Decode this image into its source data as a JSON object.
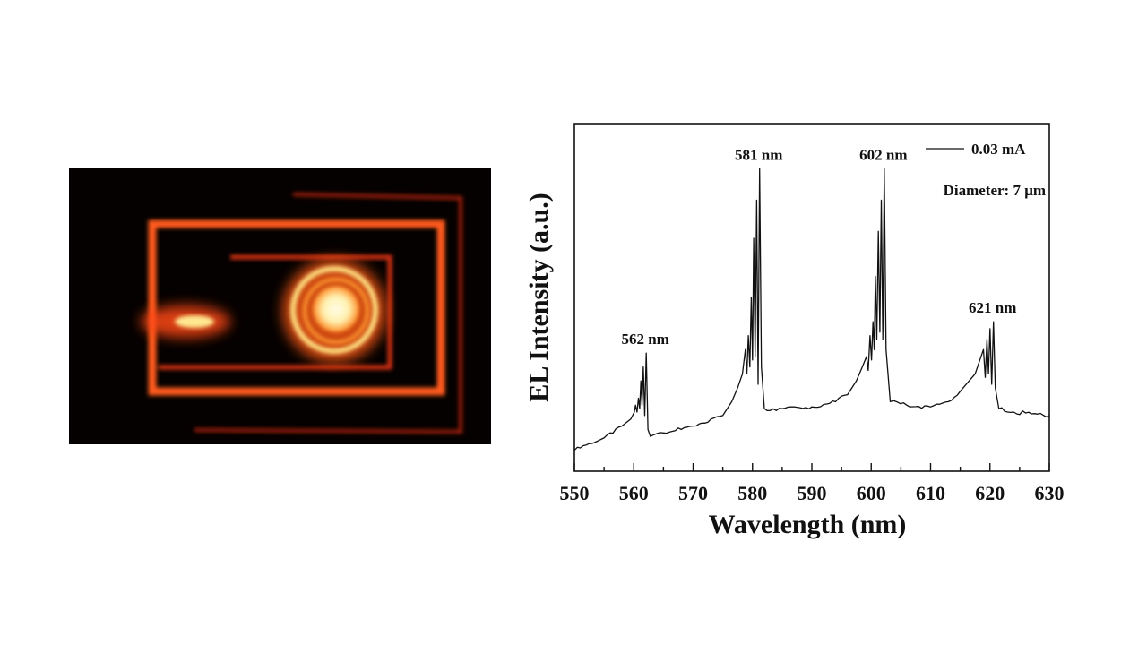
{
  "photo": {
    "caption": ""
  },
  "chart_data": {
    "type": "line",
    "title": "",
    "xlabel": "Wavelength (nm)",
    "ylabel": "EL Intensity (a.u.)",
    "xlim": [
      550,
      630
    ],
    "ylim": [
      0,
      1
    ],
    "xticks": [
      550,
      560,
      570,
      580,
      590,
      600,
      610,
      620,
      630
    ],
    "xminor_step": 5,
    "grid": false,
    "legend": {
      "placement": "top-right",
      "entries": [
        "0.03 mA"
      ]
    },
    "annotations": [
      {
        "text": "562 nm",
        "x": 562.1,
        "y": 0.34
      },
      {
        "text": "581 nm",
        "x": 581.2,
        "y": 0.87
      },
      {
        "text": "602 nm",
        "x": 602.2,
        "y": 0.87
      },
      {
        "text": "621 nm",
        "x": 620.6,
        "y": 0.43
      }
    ],
    "note": "Diameter: 7 μm",
    "series": [
      {
        "name": "0.03 mA",
        "color": "#111111",
        "x": [
          550,
          553,
          556,
          558,
          559.5,
          560.1,
          560.3,
          560.55,
          560.8,
          561.0,
          561.2,
          561.4,
          561.6,
          561.85,
          562.1,
          562.4,
          562.8,
          565,
          568,
          570,
          573,
          575,
          576.5,
          577.5,
          578.3,
          578.8,
          579.05,
          579.3,
          579.55,
          579.8,
          580.0,
          580.2,
          580.45,
          580.7,
          580.95,
          581.2,
          581.5,
          582,
          585,
          590,
          594,
          596,
          597.5,
          598.5,
          599.2,
          599.5,
          599.8,
          600.05,
          600.3,
          600.5,
          600.7,
          600.95,
          601.2,
          601.45,
          601.7,
          601.95,
          602.2,
          602.5,
          603.2,
          606,
          610,
          613,
          615,
          616.5,
          617.5,
          618.3,
          618.9,
          619.2,
          619.5,
          619.75,
          620.0,
          620.3,
          620.6,
          620.9,
          621.5,
          624,
          627,
          630
        ],
        "y": [
          0.06,
          0.08,
          0.11,
          0.13,
          0.15,
          0.17,
          0.19,
          0.17,
          0.21,
          0.18,
          0.26,
          0.19,
          0.3,
          0.16,
          0.34,
          0.12,
          0.1,
          0.11,
          0.12,
          0.13,
          0.15,
          0.16,
          0.2,
          0.24,
          0.28,
          0.35,
          0.28,
          0.39,
          0.3,
          0.5,
          0.32,
          0.67,
          0.33,
          0.78,
          0.25,
          0.87,
          0.3,
          0.18,
          0.18,
          0.185,
          0.2,
          0.22,
          0.26,
          0.3,
          0.33,
          0.29,
          0.39,
          0.32,
          0.43,
          0.35,
          0.56,
          0.38,
          0.69,
          0.4,
          0.78,
          0.38,
          0.87,
          0.35,
          0.2,
          0.19,
          0.185,
          0.2,
          0.23,
          0.26,
          0.28,
          0.32,
          0.35,
          0.27,
          0.38,
          0.28,
          0.41,
          0.25,
          0.43,
          0.24,
          0.18,
          0.17,
          0.165,
          0.16
        ]
      }
    ]
  }
}
